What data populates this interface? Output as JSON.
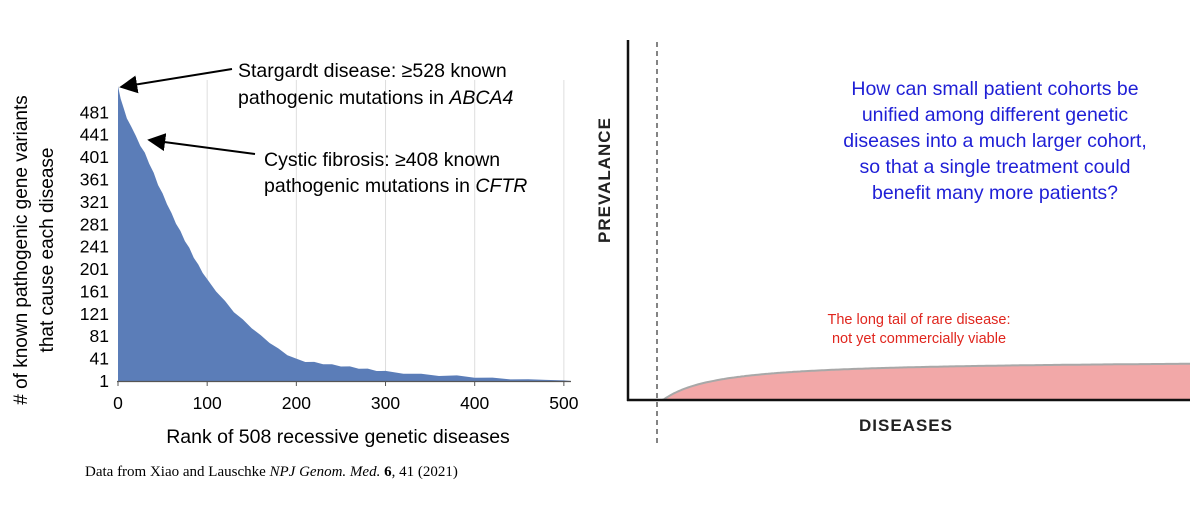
{
  "chart_data": [
    {
      "type": "area",
      "title": "",
      "xlabel": "Rank of 508 recessive genetic diseases",
      "ylabel_line1": "# of known pathogenic gene variants",
      "ylabel_line2": "that cause each disease",
      "xlim": [
        0,
        508
      ],
      "ylim": [
        1,
        528
      ],
      "x_ticks": [
        0,
        100,
        200,
        300,
        400,
        500
      ],
      "y_ticks": [
        1,
        41,
        81,
        121,
        161,
        201,
        241,
        281,
        321,
        361,
        401,
        441,
        481
      ],
      "grid": "vertical",
      "x": [
        0,
        1,
        3,
        6,
        10,
        15,
        20,
        25,
        30,
        35,
        40,
        45,
        50,
        55,
        60,
        65,
        70,
        75,
        80,
        85,
        90,
        95,
        100,
        110,
        120,
        130,
        140,
        150,
        160,
        170,
        180,
        190,
        200,
        210,
        220,
        230,
        240,
        250,
        260,
        270,
        280,
        290,
        300,
        320,
        340,
        360,
        380,
        400,
        420,
        440,
        460,
        480,
        500,
        508
      ],
      "values": [
        528,
        520,
        505,
        490,
        470,
        455,
        438,
        422,
        408,
        390,
        372,
        352,
        335,
        318,
        300,
        283,
        268,
        252,
        238,
        222,
        208,
        195,
        182,
        162,
        143,
        125,
        110,
        96,
        82,
        70,
        58,
        48,
        40,
        36,
        34,
        32,
        30,
        28,
        26,
        24,
        22,
        20,
        18,
        15,
        13,
        11,
        10,
        8,
        6,
        5,
        4,
        3,
        2,
        1
      ],
      "color": "#5b7db8",
      "annotations": [
        {
          "id": "stargardt",
          "line1": "Stargardt disease: ≥528 known",
          "line2_prefix": "pathogenic mutations in ",
          "line2_gene": "ABCA4",
          "point_x": 0,
          "point_y": 528
        },
        {
          "id": "cf",
          "line1": "Cystic fibrosis: ≥408 known",
          "line2_prefix": "pathogenic mutations in ",
          "line2_gene": "CFTR",
          "point_x": 30,
          "point_y": 408
        }
      ]
    },
    {
      "type": "area",
      "title": "",
      "xlabel": "DISEASES",
      "ylabel": "PREVALANCE",
      "head_color": "#b8f0b0",
      "tail_color": "#f2a8a8",
      "curve_color": "#a8a8a8",
      "question_lines": [
        "How can small patient cohorts be",
        "unified among different genetic",
        "diseases into a much larger cohort,",
        "so that a single treatment could",
        "benefit many more patients?"
      ],
      "question_color": "#1f1fd6",
      "tail_label_line1": "The long tail of rare disease:",
      "tail_label_line2": "not yet commercially viable",
      "tail_label_color": "#e0261e"
    }
  ],
  "citation": {
    "prefix": "Data from Xiao and Lauschke ",
    "journal": "NPJ Genom. Med.",
    "volume": "6",
    "rest": ", 41 (2021)"
  }
}
